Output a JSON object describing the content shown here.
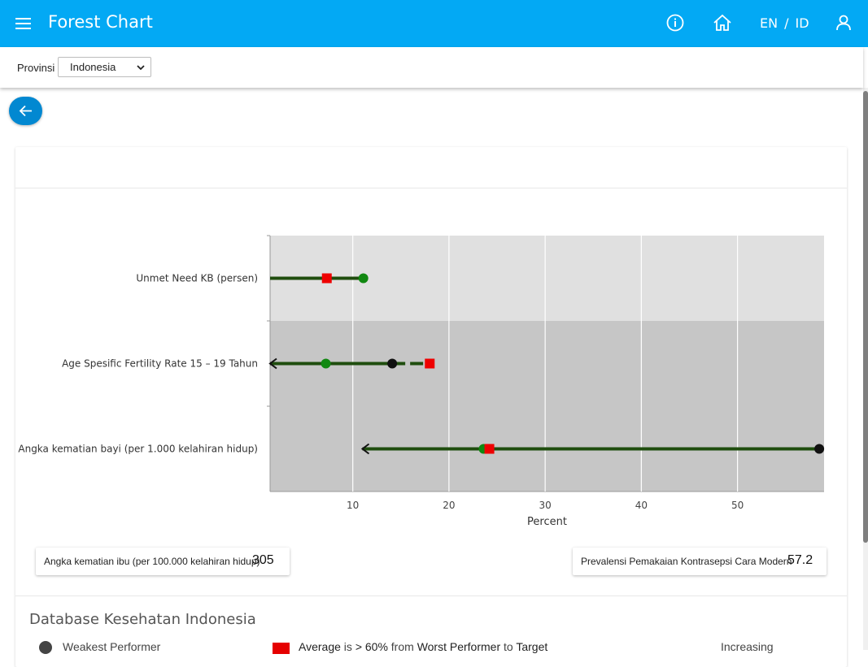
{
  "appbar": {
    "title": "Forest Chart",
    "lang_en": "EN",
    "lang_sep": "/",
    "lang_id": "ID",
    "icons": [
      "menu-icon",
      "info-icon",
      "home-icon",
      "user-icon"
    ]
  },
  "filter": {
    "label": "Provinsi",
    "selected": "Indonesia"
  },
  "chart_data": {
    "type": "forest",
    "xlabel": "Percent",
    "x_ticks": [
      10,
      20,
      30,
      40,
      50
    ],
    "xlim": [
      1.4,
      59
    ],
    "rows": [
      {
        "label": "Unmet Need KB (persen)",
        "line_from": 1.4,
        "line_to": 11.1,
        "green_point": 11.1,
        "red_square": 7.3,
        "black_point": null,
        "arrow_left": false,
        "dashed_to_red": false
      },
      {
        "label": "Age Spesific Fertility Rate 15 – 19 Tahun",
        "line_from": 1.4,
        "line_to": 14.1,
        "green_point": 7.2,
        "red_square": 18.0,
        "black_point": 14.1,
        "arrow_left": true,
        "dashed_to_red": true
      },
      {
        "label": "Angka kematian bayi (per 1.000 kelahiran hidup)",
        "line_from": 11.0,
        "line_to": 58.5,
        "green_point": 23.6,
        "red_square": 24.2,
        "black_point": 58.5,
        "arrow_left": true,
        "dashed_to_red": false
      }
    ],
    "colors": {
      "line": "#1f4d0e",
      "green": "#118811",
      "red": "#ee0000",
      "black": "#111111",
      "band_light": "#e0e0e0",
      "band_dark": "#c6c6c6"
    }
  },
  "stats": [
    {
      "label": "Angka kematian ibu (per 100.000 kelahiran hidup)",
      "value": "305"
    },
    {
      "label": "Prevalensi Pemakaian Kontrasepsi Cara Modern",
      "value": "57.2"
    }
  ],
  "database": {
    "title": "Database Kesehatan Indonesia",
    "legend_weakest": "Weakest Performer",
    "legend_avg_a": "Average",
    "legend_avg_b": "is",
    "legend_avg_c": "> 60%",
    "legend_avg_d": "from",
    "legend_avg_e": "Worst Performer",
    "legend_avg_f": "to",
    "legend_avg_g": "Target",
    "legend_trend": "Increasing"
  }
}
